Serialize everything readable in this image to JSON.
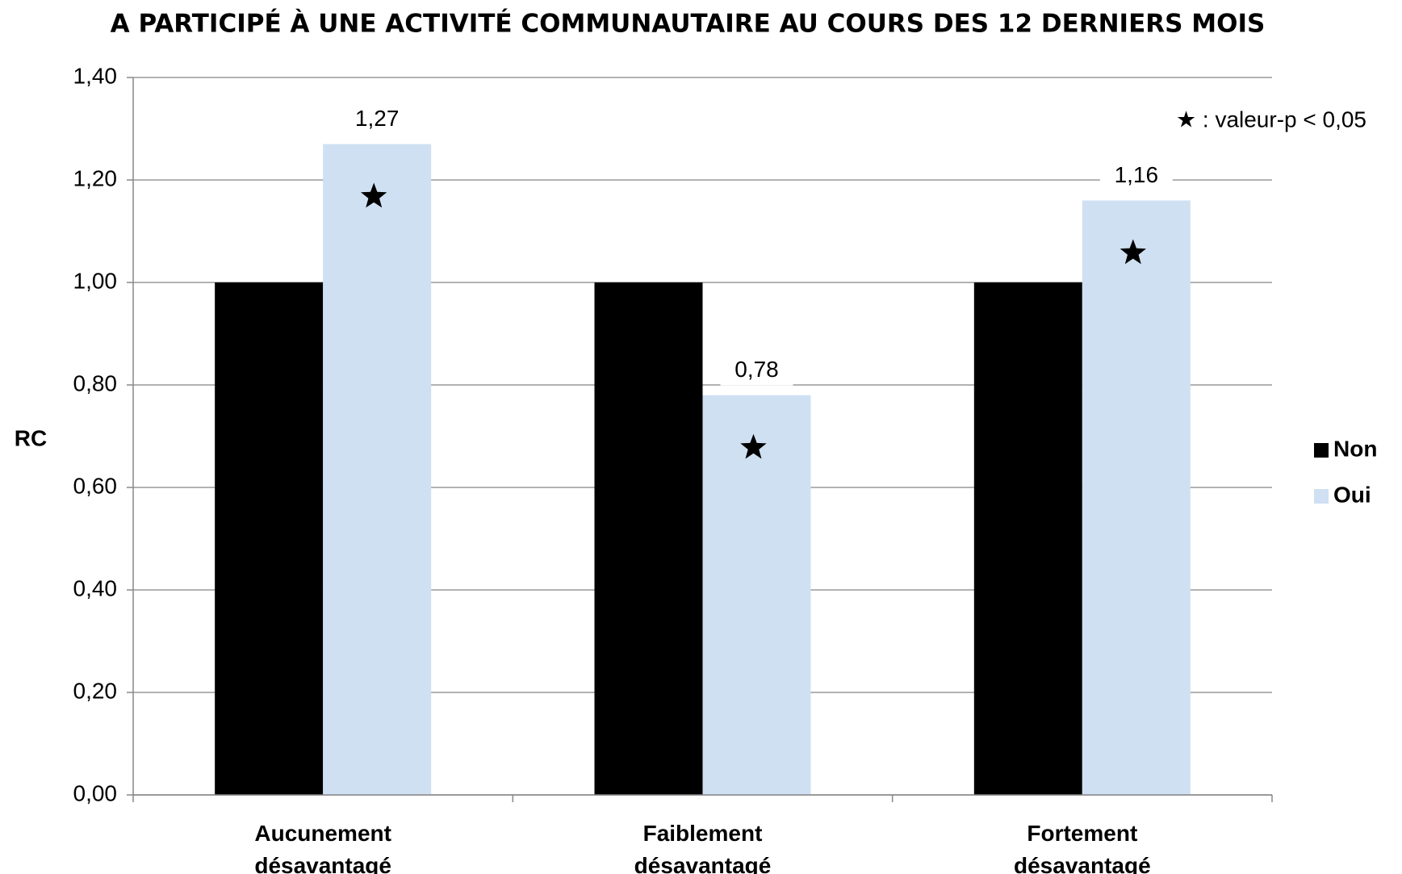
{
  "chart_data": {
    "type": "bar",
    "title": "A PARTICIPÉ À UNE ACTIVITÉ COMMUNAUTAIRE AU COURS DES 12 DERNIERS MOIS",
    "y_label": "RC",
    "annotation": "★ : valeur-p < 0,05",
    "categories": [
      "Aucunement désavantagé",
      "Faiblement désavantagé",
      "Fortement désavantagé"
    ],
    "series": [
      {
        "name": "Non",
        "color": "#000000",
        "values": [
          1.0,
          1.0,
          1.0
        ]
      },
      {
        "name": "Oui",
        "color": "#cfe0f2",
        "values": [
          1.27,
          0.78,
          1.16
        ],
        "value_labels": [
          "1,27",
          "0,78",
          "1,16"
        ],
        "significant": [
          true,
          true,
          true
        ]
      }
    ],
    "ylim": [
      0,
      1.4
    ],
    "yticks": [
      {
        "value": 0,
        "label": "0,00"
      },
      {
        "value": 0.2,
        "label": "0,20"
      },
      {
        "value": 0.4,
        "label": "0,40"
      },
      {
        "value": 0.6,
        "label": "0,60"
      },
      {
        "value": 0.8,
        "label": "0,80"
      },
      {
        "value": 1.0,
        "label": "1,00"
      },
      {
        "value": 1.2,
        "label": "1,20"
      },
      {
        "value": 1.4,
        "label": "1,40"
      }
    ],
    "grid": true,
    "legend": "right"
  }
}
